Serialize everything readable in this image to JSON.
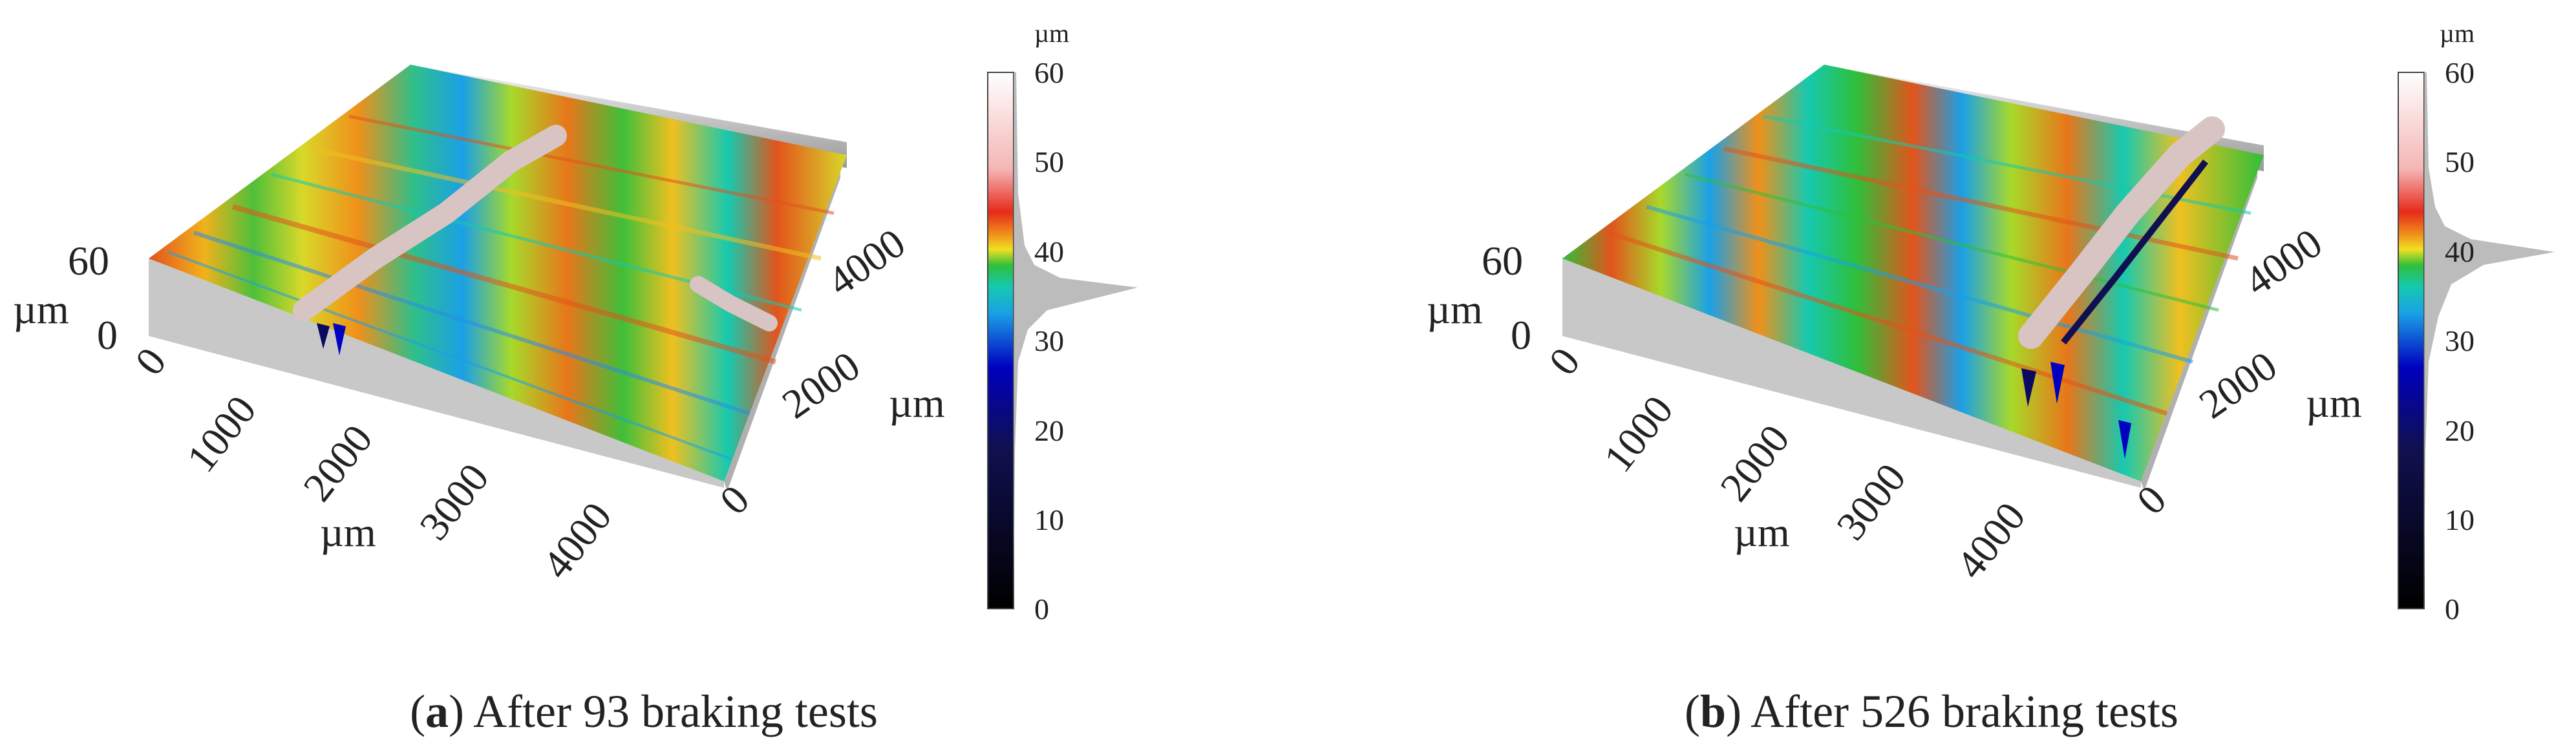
{
  "colorbar": {
    "unit": "µm",
    "ticks": [
      "60",
      "50",
      "40",
      "30",
      "20",
      "10",
      "0"
    ],
    "range": [
      0,
      60
    ]
  },
  "panels": [
    {
      "id": "a",
      "caption_letter": "a",
      "caption_text": "After 93 braking tests",
      "z_axis": {
        "unit": "µm",
        "ticks": [
          "60",
          "0"
        ]
      },
      "x_axis": {
        "unit": "µm",
        "ticks": [
          "0",
          "1000",
          "2000",
          "3000",
          "4000"
        ]
      },
      "y_axis": {
        "unit": "µm",
        "ticks": [
          "0",
          "2000",
          "4000"
        ]
      }
    },
    {
      "id": "b",
      "caption_letter": "b",
      "caption_text": "After 526 braking tests",
      "z_axis": {
        "unit": "µm",
        "ticks": [
          "60",
          "0"
        ]
      },
      "x_axis": {
        "unit": "µm",
        "ticks": [
          "0",
          "1000",
          "2000",
          "3000",
          "4000"
        ]
      },
      "y_axis": {
        "unit": "µm",
        "ticks": [
          "0",
          "2000",
          "4000"
        ]
      }
    }
  ],
  "colors": {
    "scale": [
      "#000000",
      "#101050",
      "#0000c0",
      "#1aa0e6",
      "#16c9b0",
      "#2fbf3a",
      "#a8d92a",
      "#f0e020",
      "#f08a1a",
      "#e62a1a",
      "#f5b5b5",
      "#ffffff"
    ]
  }
}
